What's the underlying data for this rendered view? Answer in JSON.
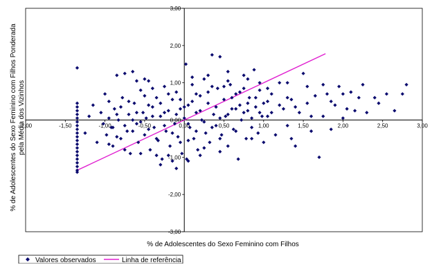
{
  "chart_data": {
    "type": "scatter",
    "xlabel": "% de Adolescentes do Sexo Feminino com Filhos",
    "ylabel_lines": [
      "% de Adolescentes do Sexo Feminino com Filhos Ponderada",
      "pela Média dos Vizinhos"
    ],
    "xlim": [
      -2.0,
      3.0
    ],
    "ylim": [
      -3.0,
      3.0
    ],
    "xticks": [
      "-2,00",
      "-1,50",
      "-1,00",
      "-0,50",
      "0,00",
      "0,50",
      "1,00",
      "1,50",
      "2,00",
      "2,50",
      "3,00"
    ],
    "yticks": [
      "3,00",
      "2,00",
      "1,00",
      "0,00",
      "-1,00",
      "-2,00",
      "-3,00"
    ],
    "grid": false,
    "legend_position": "bottom-left",
    "series": [
      {
        "name": "Valores observados",
        "kind": "markers",
        "color": "#0a0a6e",
        "marker": "diamond",
        "points": [
          [
            -1.35,
            1.4
          ],
          [
            -1.35,
            0.45
          ],
          [
            -1.35,
            0.35
          ],
          [
            -1.35,
            0.25
          ],
          [
            -1.35,
            0.15
          ],
          [
            -1.35,
            0.05
          ],
          [
            -1.35,
            -0.05
          ],
          [
            -1.35,
            -0.15
          ],
          [
            -1.35,
            -0.25
          ],
          [
            -1.35,
            -0.35
          ],
          [
            -1.35,
            -0.45
          ],
          [
            -1.35,
            -0.55
          ],
          [
            -1.35,
            -0.65
          ],
          [
            -1.35,
            -0.75
          ],
          [
            -1.35,
            -0.85
          ],
          [
            -1.35,
            -0.95
          ],
          [
            -1.35,
            -1.05
          ],
          [
            -1.35,
            -1.15
          ],
          [
            -1.35,
            -1.25
          ],
          [
            -1.35,
            -1.35
          ],
          [
            -1.35,
            -1.4
          ],
          [
            -1.25,
            -0.35
          ],
          [
            -1.2,
            0.1
          ],
          [
            -1.15,
            0.4
          ],
          [
            -1.1,
            -0.6
          ],
          [
            -1.05,
            0.2
          ],
          [
            -1.02,
            -0.1
          ],
          [
            -1.0,
            0.7
          ],
          [
            -0.98,
            -0.4
          ],
          [
            -0.95,
            0.5
          ],
          [
            -0.92,
            -0.2
          ],
          [
            -0.9,
            -0.7
          ],
          [
            -0.88,
            0.3
          ],
          [
            -0.85,
            1.2
          ],
          [
            -0.83,
            0.0
          ],
          [
            -0.8,
            -0.5
          ],
          [
            -0.78,
            0.6
          ],
          [
            -0.75,
            1.25
          ],
          [
            -0.72,
            -0.3
          ],
          [
            -0.7,
            0.15
          ],
          [
            -0.68,
            -0.9
          ],
          [
            -0.65,
            1.3
          ],
          [
            -0.63,
            0.45
          ],
          [
            -0.6,
            -0.1
          ],
          [
            -0.58,
            -0.6
          ],
          [
            -0.55,
            0.8
          ],
          [
            -0.52,
            0.2
          ],
          [
            -0.5,
            -0.4
          ],
          [
            -0.48,
            0.05
          ],
          [
            -0.45,
            1.05
          ],
          [
            -0.43,
            -0.8
          ],
          [
            -0.4,
            0.35
          ],
          [
            -0.38,
            -0.2
          ],
          [
            -0.35,
            0.6
          ],
          [
            -0.33,
            -0.55
          ],
          [
            -0.3,
            0.1
          ],
          [
            -0.28,
            -1.05
          ],
          [
            -0.25,
            0.9
          ],
          [
            -0.23,
            -0.3
          ],
          [
            -0.2,
            0.25
          ],
          [
            -0.18,
            -0.7
          ],
          [
            -0.15,
            0.55
          ],
          [
            -0.12,
            -0.1
          ],
          [
            -0.1,
            0.75
          ],
          [
            -0.08,
            -0.45
          ],
          [
            -0.05,
            0.3
          ],
          [
            -0.03,
            -0.9
          ],
          [
            0.0,
            0.05
          ],
          [
            0.02,
            1.5
          ],
          [
            0.03,
            -1.05
          ],
          [
            0.05,
            0.4
          ],
          [
            0.07,
            -0.2
          ],
          [
            0.1,
            0.95
          ],
          [
            0.12,
            -0.5
          ],
          [
            0.15,
            0.2
          ],
          [
            0.17,
            -0.8
          ],
          [
            0.2,
            0.65
          ],
          [
            0.22,
            0.0
          ],
          [
            0.25,
            1.1
          ],
          [
            0.27,
            -0.35
          ],
          [
            0.3,
            0.45
          ],
          [
            0.32,
            -0.6
          ],
          [
            0.35,
            1.75
          ],
          [
            0.37,
            0.15
          ],
          [
            0.4,
            -0.15
          ],
          [
            0.42,
            0.85
          ],
          [
            0.45,
            1.7
          ],
          [
            0.47,
            -0.4
          ],
          [
            0.5,
            0.55
          ],
          [
            0.52,
            0.1
          ],
          [
            0.55,
            -0.7
          ],
          [
            0.58,
            0.95
          ],
          [
            0.6,
            0.3
          ],
          [
            0.62,
            -0.25
          ],
          [
            0.65,
            0.7
          ],
          [
            0.68,
            -1.05
          ],
          [
            0.7,
            0.4
          ],
          [
            0.72,
            0.0
          ],
          [
            0.75,
            1.2
          ],
          [
            0.78,
            -0.5
          ],
          [
            0.8,
            0.25
          ],
          [
            0.82,
            0.6
          ],
          [
            0.85,
            -0.2
          ],
          [
            0.88,
            1.35
          ],
          [
            0.9,
            0.35
          ],
          [
            0.93,
            -0.35
          ],
          [
            0.95,
            0.8
          ],
          [
            0.98,
            0.1
          ],
          [
            1.0,
            -0.6
          ],
          [
            1.05,
            0.5
          ],
          [
            1.1,
            0.2
          ],
          [
            1.15,
            -0.4
          ],
          [
            1.2,
            1.0
          ],
          [
            1.25,
            0.3
          ],
          [
            1.3,
            -0.15
          ],
          [
            1.35,
            0.55
          ],
          [
            1.4,
            -0.7
          ],
          [
            1.45,
            0.2
          ],
          [
            1.5,
            1.25
          ],
          [
            1.55,
            0.45
          ],
          [
            1.6,
            -0.3
          ],
          [
            1.65,
            0.65
          ],
          [
            1.7,
            -1.0
          ],
          [
            1.75,
            0.1
          ],
          [
            1.8,
            0.7
          ],
          [
            1.85,
            -0.25
          ],
          [
            1.9,
            0.4
          ],
          [
            1.95,
            0.9
          ],
          [
            2.0,
            0.05
          ],
          [
            2.05,
            0.3
          ],
          [
            2.1,
            0.75
          ],
          [
            2.15,
            0.25
          ],
          [
            2.2,
            0.6
          ],
          [
            2.3,
            0.2
          ],
          [
            2.4,
            0.6
          ],
          [
            2.45,
            0.45
          ],
          [
            2.55,
            0.7
          ],
          [
            2.65,
            0.25
          ],
          [
            2.75,
            0.7
          ],
          [
            2.8,
            0.95
          ],
          [
            -0.95,
            0.05
          ],
          [
            -0.9,
            -0.2
          ],
          [
            -0.85,
            -0.45
          ],
          [
            -0.8,
            0.35
          ],
          [
            -0.75,
            -0.15
          ],
          [
            -0.7,
            0.5
          ],
          [
            -0.65,
            -0.3
          ],
          [
            -0.6,
            0.2
          ],
          [
            -0.55,
            -0.05
          ],
          [
            -0.5,
            0.65
          ],
          [
            -0.45,
            -0.25
          ],
          [
            -0.4,
            0.1
          ],
          [
            -0.35,
            -0.5
          ],
          [
            -0.3,
            0.45
          ],
          [
            -0.25,
            -0.15
          ],
          [
            -0.2,
            0.7
          ],
          [
            -0.15,
            -0.35
          ],
          [
            -0.1,
            0.15
          ],
          [
            -0.05,
            -0.6
          ],
          [
            0.0,
            0.35
          ],
          [
            0.05,
            -0.1
          ],
          [
            0.1,
            0.5
          ],
          [
            0.15,
            -0.3
          ],
          [
            0.2,
            0.25
          ],
          [
            0.25,
            -0.05
          ],
          [
            0.3,
            0.75
          ],
          [
            0.35,
            -0.2
          ],
          [
            0.4,
            0.35
          ],
          [
            0.45,
            0.05
          ],
          [
            0.5,
            0.9
          ],
          [
            0.55,
            0.15
          ],
          [
            0.6,
            0.6
          ],
          [
            0.65,
            0.3
          ],
          [
            0.7,
            0.75
          ],
          [
            0.75,
            0.2
          ],
          [
            0.8,
            0.45
          ],
          [
            0.85,
            0.05
          ],
          [
            0.9,
            0.6
          ],
          [
            0.95,
            0.2
          ],
          [
            1.0,
            0.45
          ],
          [
            1.05,
            0.1
          ],
          [
            1.1,
            0.7
          ],
          [
            1.2,
            0.4
          ],
          [
            1.3,
            0.6
          ],
          [
            1.4,
            0.35
          ],
          [
            -0.95,
            -0.65
          ],
          [
            -0.85,
            0.15
          ],
          [
            -0.75,
            -0.8
          ],
          [
            -0.65,
            0.0
          ],
          [
            -0.55,
            -0.9
          ],
          [
            -0.45,
            0.4
          ],
          [
            -0.35,
            -0.95
          ],
          [
            -0.25,
            0.2
          ],
          [
            -0.15,
            -1.1
          ],
          [
            -0.05,
            0.55
          ],
          [
            0.05,
            -0.55
          ],
          [
            0.15,
            0.7
          ],
          [
            0.25,
            -0.75
          ],
          [
            0.35,
            0.9
          ],
          [
            0.45,
            -0.5
          ],
          [
            0.55,
            1.05
          ],
          [
            0.65,
            -0.3
          ],
          [
            0.75,
            0.85
          ],
          [
            0.85,
            -0.5
          ],
          [
            0.95,
            1.0
          ],
          [
            -0.3,
            -1.2
          ],
          [
            -0.2,
            -0.95
          ],
          [
            -0.1,
            -1.3
          ],
          [
            0.05,
            -1.1
          ],
          [
            0.2,
            -0.95
          ],
          [
            0.45,
            -0.85
          ],
          [
            -0.6,
            1.05
          ],
          [
            -0.5,
            1.1
          ],
          [
            -0.4,
            0.85
          ],
          [
            0.1,
            1.15
          ],
          [
            0.3,
            1.2
          ],
          [
            0.55,
            1.3
          ],
          [
            0.8,
            1.1
          ],
          [
            1.05,
            0.85
          ],
          [
            1.3,
            1.0
          ],
          [
            1.55,
            0.9
          ],
          [
            1.75,
            0.95
          ],
          [
            2.25,
            0.95
          ],
          [
            1.35,
            -0.5
          ],
          [
            1.6,
            0.1
          ],
          [
            1.85,
            0.5
          ],
          [
            2.0,
            0.7
          ]
        ]
      },
      {
        "name": "Linha de referência",
        "kind": "line",
        "color": "#e020d0",
        "points": [
          [
            -1.35,
            -1.35
          ],
          [
            1.78,
            1.78
          ]
        ]
      }
    ]
  }
}
